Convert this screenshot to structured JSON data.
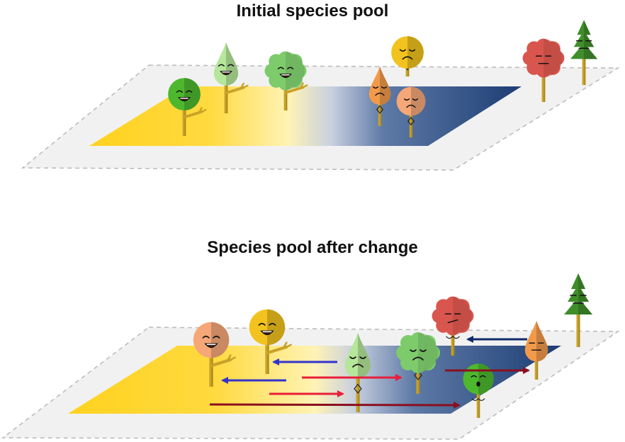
{
  "panels": {
    "top": {
      "title": "Initial species pool"
    },
    "bottom": {
      "title": "Species pool after change"
    }
  },
  "colors": {
    "warm_habitat": "#FFD21F",
    "cold_habitat": "#1C3D74",
    "pool_outline": "#BDBDBD",
    "arrow_blue": "#3333CC",
    "arrow_red": "#E81E3A",
    "arrow_dark_red": "#8B0F1E",
    "arrow_navy": "#0F2A6B"
  },
  "species": [
    {
      "id": "round-green",
      "color": "#4DB82E",
      "shape": "round"
    },
    {
      "id": "teardrop-lightgreen",
      "color": "#B5E69A",
      "shape": "teardrop"
    },
    {
      "id": "cloud-green",
      "color": "#7DCB6B",
      "shape": "cloud"
    },
    {
      "id": "round-yellow",
      "color": "#F2C21F",
      "shape": "round"
    },
    {
      "id": "teardrop-orange",
      "color": "#F29A4A",
      "shape": "teardrop"
    },
    {
      "id": "round-peach",
      "color": "#F5A778",
      "shape": "round"
    },
    {
      "id": "cloud-red",
      "color": "#D9564E",
      "shape": "cloud"
    },
    {
      "id": "conifer-green",
      "color": "#3F8E2A",
      "shape": "conifer"
    }
  ]
}
